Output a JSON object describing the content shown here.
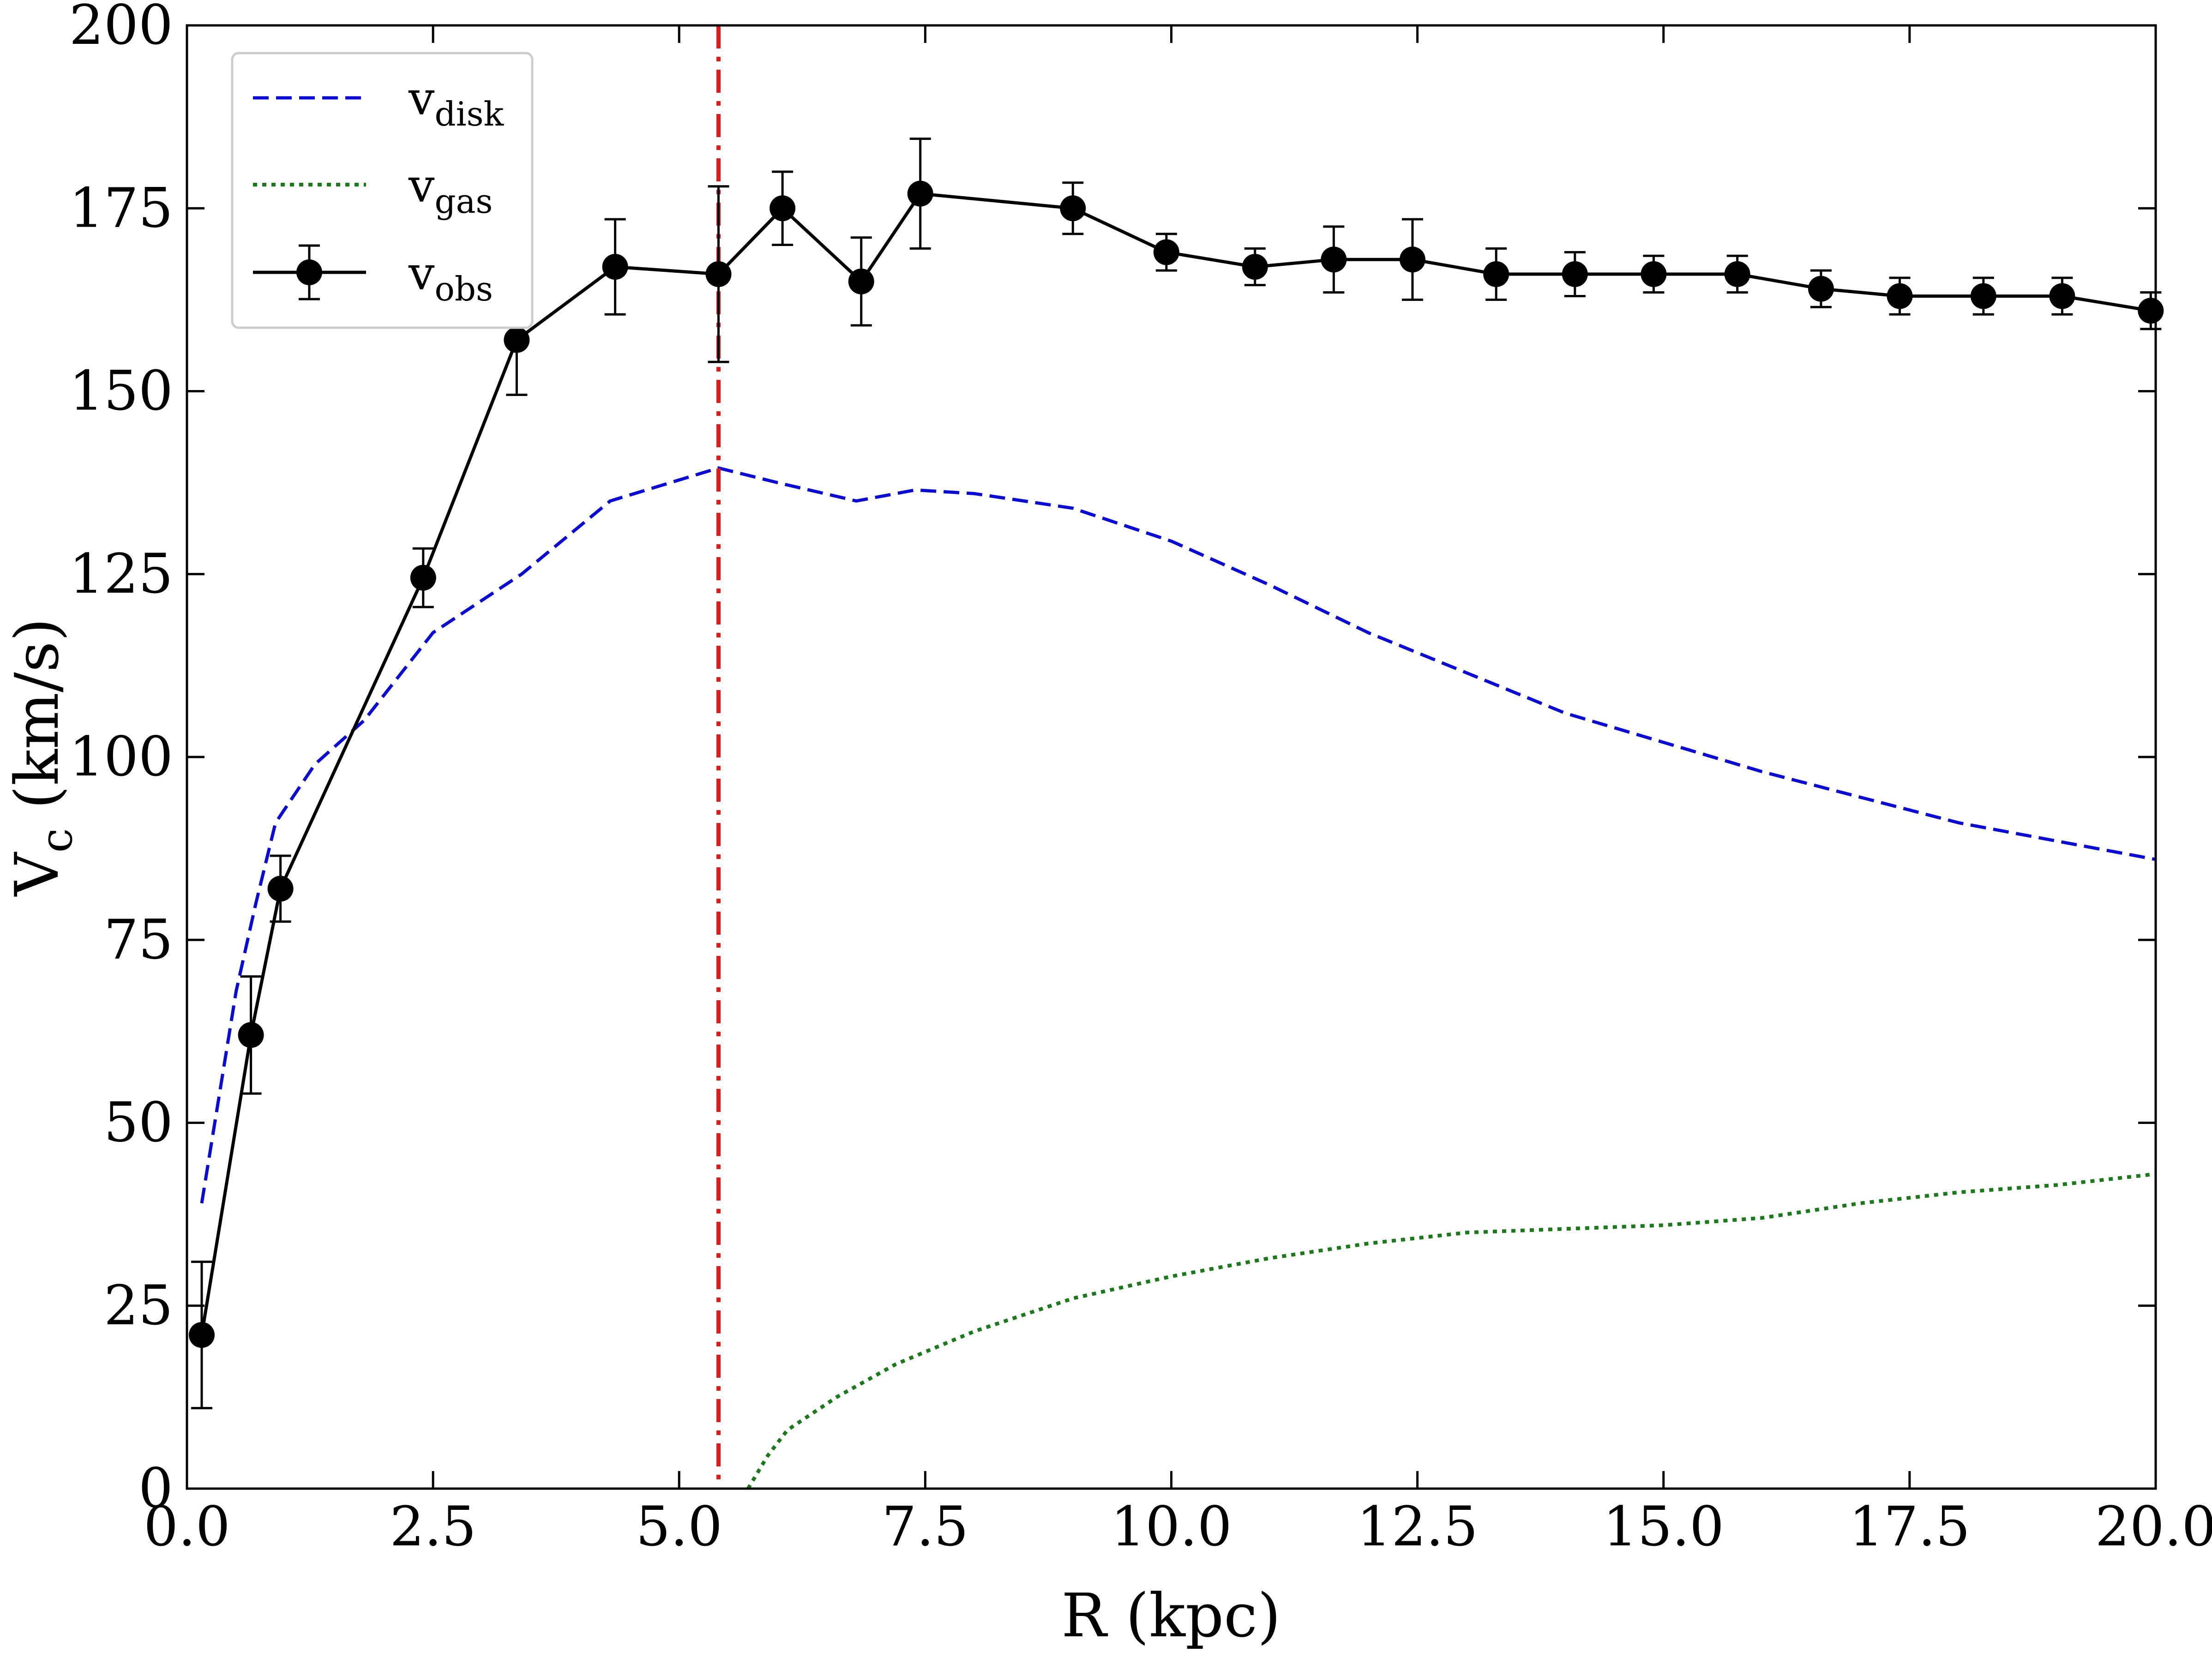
{
  "chart_data": {
    "type": "line",
    "xlabel": "R (kpc)",
    "ylabel": {
      "main": "V",
      "sub": "c",
      "unit": " (km/s)"
    },
    "xlim": [
      0.0,
      20.0
    ],
    "ylim": [
      0,
      200
    ],
    "xticks": [
      0.0,
      2.5,
      5.0,
      7.5,
      10.0,
      12.5,
      15.0,
      17.5,
      20.0
    ],
    "xtick_labels": [
      "0.0",
      "2.5",
      "5.0",
      "7.5",
      "10.0",
      "12.5",
      "15.0",
      "17.5",
      "20.0"
    ],
    "yticks": [
      0,
      25,
      50,
      75,
      100,
      125,
      150,
      175,
      200
    ],
    "ytick_labels": [
      "0",
      "25",
      "50",
      "75",
      "100",
      "125",
      "150",
      "175",
      "200"
    ],
    "grid": false,
    "legend_position": "top-left",
    "vline": {
      "x": 5.4,
      "color": "#e31a1c",
      "style": "dash-dot"
    },
    "series": [
      {
        "name": "v_disk",
        "label_main": "v",
        "label_sub": "disk",
        "color": "#0a0ad6",
        "style": "dashed",
        "x": [
          0.15,
          0.5,
          0.7,
          0.9,
          1.3,
          1.8,
          2.5,
          3.4,
          4.3,
          5.4,
          6.0,
          6.8,
          7.4,
          8.0,
          9.0,
          10.0,
          11.0,
          12.0,
          13.0,
          14.0,
          15.0,
          16.0,
          17.0,
          18.0,
          19.0,
          20.0
        ],
        "y": [
          39,
          68,
          80,
          91,
          99,
          105,
          117,
          125,
          135,
          139.5,
          137.5,
          135,
          136.5,
          136,
          134,
          129.5,
          123.5,
          117,
          111.5,
          106,
          102,
          98,
          94.5,
          91,
          88.5,
          86
        ]
      },
      {
        "name": "v_gas",
        "label_main": "v",
        "label_sub": "gas",
        "color": "#1a7a1a",
        "style": "dotted",
        "x": [
          5.7,
          5.9,
          6.1,
          6.6,
          7.2,
          8.0,
          9.0,
          10.0,
          11.0,
          12.0,
          13.0,
          14.0,
          15.0,
          16.0,
          17.0,
          18.0,
          19.0,
          20.0
        ],
        "y": [
          0,
          4.5,
          8,
          12.5,
          17,
          21.5,
          26,
          29,
          31.5,
          33.5,
          35,
          35.5,
          36,
          37,
          39,
          40.5,
          41.5,
          43
        ]
      },
      {
        "name": "v_obs",
        "label_main": "v",
        "label_sub": "obs",
        "color": "#000000",
        "style": "solid-markers",
        "x": [
          0.15,
          0.65,
          0.95,
          2.4,
          3.35,
          4.35,
          5.4,
          6.05,
          6.85,
          7.45,
          9.0,
          9.95,
          10.85,
          11.65,
          12.45,
          13.3,
          14.1,
          14.9,
          15.75,
          16.6,
          17.4,
          18.25,
          19.05,
          19.95
        ],
        "y": [
          21,
          62,
          82,
          124.5,
          157,
          167,
          166,
          175,
          165,
          177,
          175,
          169,
          167,
          168,
          168,
          166,
          166,
          166,
          166,
          164,
          163,
          163,
          163,
          161
        ],
        "err": [
          10,
          8,
          4.5,
          4,
          7.5,
          6.5,
          12,
          5,
          6,
          7.5,
          3.5,
          2.5,
          2.5,
          4.5,
          5.5,
          3.5,
          3,
          2.5,
          2.5,
          2.5,
          2.5,
          2.5,
          2.5,
          2.5
        ]
      }
    ]
  }
}
